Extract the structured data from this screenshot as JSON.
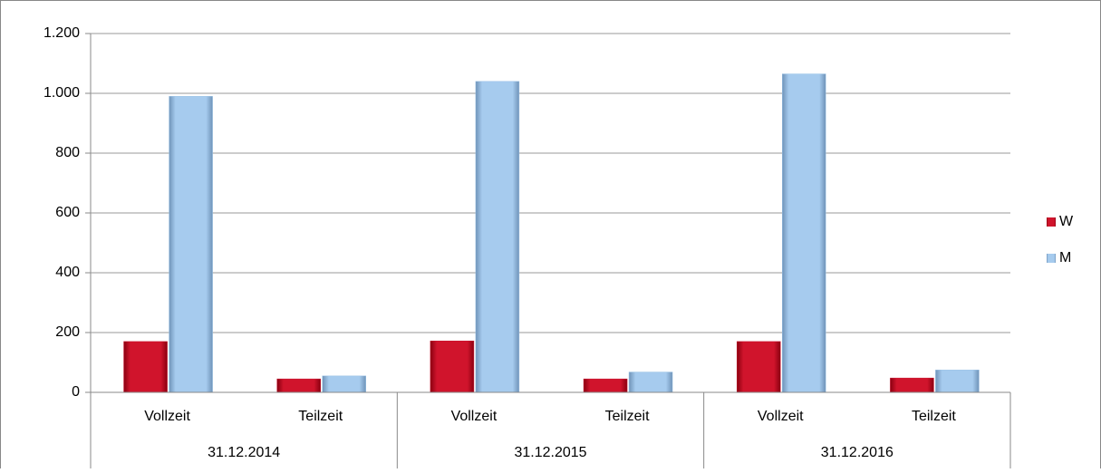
{
  "chart_data": {
    "type": "bar",
    "categories": [
      "Vollzeit",
      "Teilzeit",
      "Vollzeit",
      "Teilzeit",
      "Vollzeit",
      "Teilzeit"
    ],
    "category_groups": [
      "31.12.2014",
      "31.12.2015",
      "31.12.2016"
    ],
    "series": [
      {
        "name": "W",
        "color": "#c8102e",
        "values": [
          170,
          45,
          172,
          45,
          170,
          48
        ]
      },
      {
        "name": "M",
        "color": "#9cc3e6",
        "values": [
          990,
          55,
          1040,
          68,
          1065,
          75
        ]
      }
    ],
    "ylim": [
      0,
      1200
    ],
    "yticks": [
      0,
      200,
      400,
      600,
      800,
      {
        "value": 1000,
        "label": "1.000"
      },
      {
        "value": 1200,
        "label": "1.200"
      }
    ],
    "grid": true,
    "legend": "right"
  }
}
